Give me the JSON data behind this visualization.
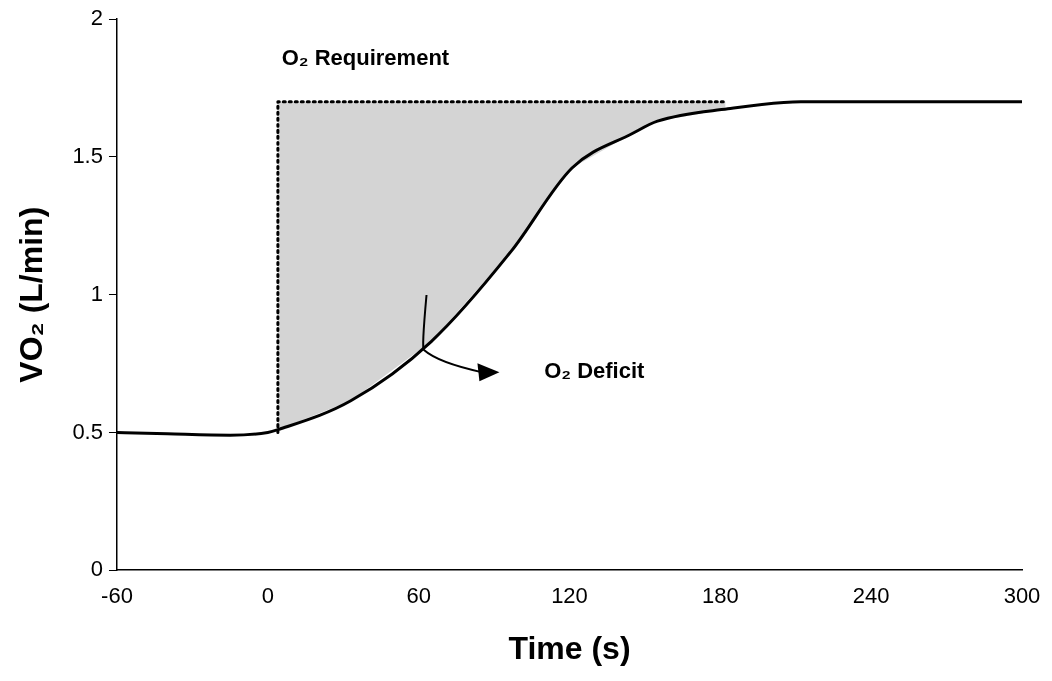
{
  "chart_data": {
    "type": "line",
    "xlabel": "Time (s)",
    "ylabel": "VO₂ (L/min)",
    "xlim": [
      -60,
      300
    ],
    "xticks": [
      -60,
      0,
      60,
      120,
      180,
      240,
      300
    ],
    "ylim": [
      0,
      2
    ],
    "yticks": [
      0,
      0.5,
      1,
      1.5,
      2
    ],
    "grid": false,
    "legend": false,
    "marker": "none",
    "series": [
      {
        "color": "#000000",
        "line_style": "solid",
        "x": [
          -60,
          -40,
          -15,
          0,
          4,
          33,
          65,
          97,
          121,
          145,
          155,
          183,
          212,
          300
        ],
        "values": [
          0.5,
          0.495,
          0.49,
          0.5,
          0.51,
          0.615,
          0.83,
          1.16,
          1.46,
          1.585,
          1.63,
          1.675,
          1.7,
          1.7
        ]
      },
      {
        "color": "#000000",
        "line_style": "dotted",
        "x": [
          4,
          4,
          182
        ],
        "values": [
          0.5,
          1.7,
          1.7
        ]
      }
    ],
    "annotations": [
      "O₂ Requirement",
      "O₂ Deficit"
    ]
  }
}
